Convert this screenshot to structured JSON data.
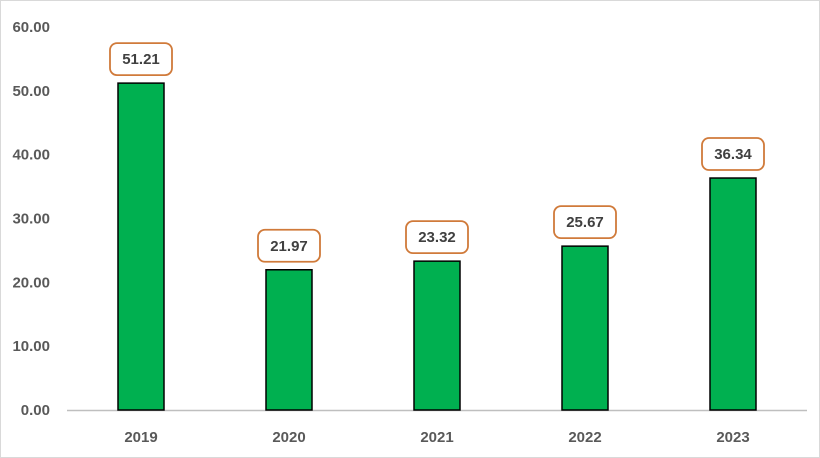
{
  "chart_data": {
    "type": "bar",
    "categories": [
      "2019",
      "2020",
      "2021",
      "2022",
      "2023"
    ],
    "values": [
      51.21,
      21.97,
      23.32,
      25.67,
      36.34
    ],
    "data_labels": [
      "51.21",
      "21.97",
      "23.32",
      "25.67",
      "36.34"
    ],
    "y_ticks": [
      "0.00",
      "10.00",
      "20.00",
      "30.00",
      "40.00",
      "50.00",
      "60.00"
    ],
    "ylim": [
      0,
      60
    ],
    "grid": false,
    "legend": "none",
    "colors": {
      "bar_fill": "#00b050",
      "bar_stroke": "#000000",
      "label_border": "#d07a3a",
      "axis": "#bfbfbf"
    }
  }
}
